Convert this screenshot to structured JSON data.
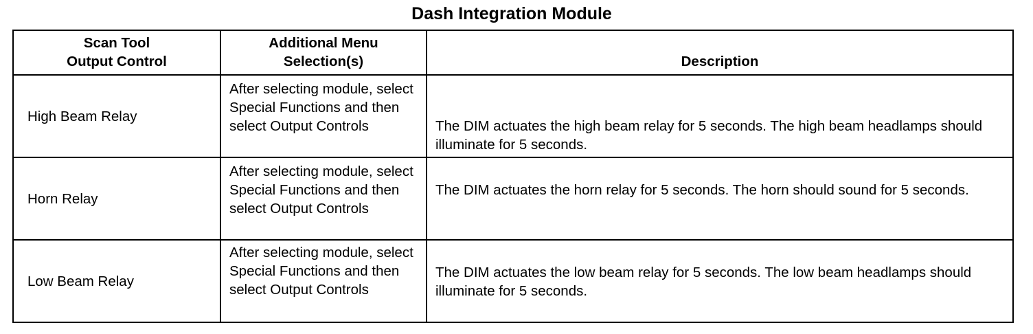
{
  "title": "Dash Integration Module",
  "headers": [
    "Scan Tool\nOutput Control",
    "Additional Menu\nSelection(s)",
    "Description"
  ],
  "rows": [
    {
      "control": "High Beam Relay",
      "menu": "After selecting module, select Special Functions and then select Output Controls",
      "description": "The DIM actuates the high beam relay for 5 seconds. The high beam headlamps should illuminate for 5 seconds."
    },
    {
      "control": "Horn Relay",
      "menu": "After selecting module, select Special Functions and then select Output Controls",
      "description": "The DIM actuates the horn relay for 5 seconds. The horn should sound for 5 seconds."
    },
    {
      "control": "Low Beam Relay",
      "menu": "After selecting module, select Special Functions and then select Output Controls",
      "description": "The DIM actuates the low beam relay for 5 seconds. The low beam headlamps should illuminate for 5 seconds."
    }
  ]
}
